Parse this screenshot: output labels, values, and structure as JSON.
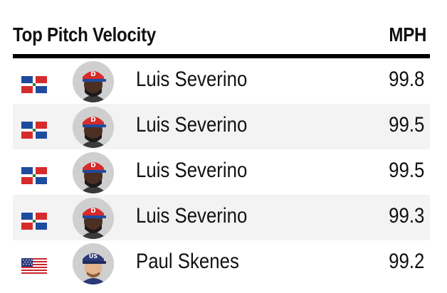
{
  "header": {
    "title": "Top Pitch Velocity",
    "unit": "MPH"
  },
  "rows": [
    {
      "name": "Luis Severino",
      "value": "99.8",
      "flag": "dominican-republic-flag-icon",
      "cap": "dominican-cap"
    },
    {
      "name": "Luis Severino",
      "value": "99.5",
      "flag": "dominican-republic-flag-icon",
      "cap": "dominican-cap"
    },
    {
      "name": "Luis Severino",
      "value": "99.5",
      "flag": "dominican-republic-flag-icon",
      "cap": "dominican-cap"
    },
    {
      "name": "Luis Severino",
      "value": "99.3",
      "flag": "dominican-republic-flag-icon",
      "cap": "dominican-cap"
    },
    {
      "name": "Paul Skenes",
      "value": "99.2",
      "flag": "united-states-flag-icon",
      "cap": "usa-cap"
    }
  ],
  "colors": {
    "dr_blue": "#1f4b9e",
    "dr_red": "#d62b2b",
    "us_red": "#c8242c",
    "us_blue": "#2b3a7a",
    "alt_row": "#f3f3f3"
  }
}
